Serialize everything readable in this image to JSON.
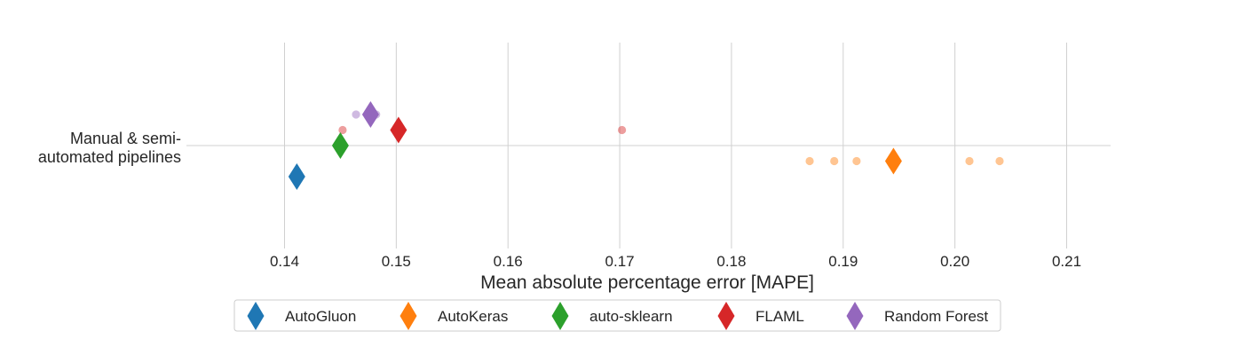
{
  "chart_data": {
    "type": "scatter",
    "title": "",
    "xlabel": "Mean absolute percentage error [MAPE]",
    "ylabel": "",
    "xlim": [
      0.13,
      0.2141
    ],
    "xticks": [
      0.14,
      0.15,
      0.16,
      0.17,
      0.18,
      0.19,
      0.2,
      0.21
    ],
    "xtick_labels": [
      "0.14",
      "0.15",
      "0.16",
      "0.17",
      "0.18",
      "0.19",
      "0.20",
      "0.21"
    ],
    "categories": [
      "Manual & semi-\nautomated pipelines"
    ],
    "category_lines": [
      "Manual & semi-",
      "automated pipelines"
    ],
    "grid": true,
    "legend_placement": "bottom-center",
    "series": [
      {
        "name": "AutoGluon",
        "color": "#1f77b4",
        "mean": 0.1411,
        "offset": 2,
        "points": []
      },
      {
        "name": "AutoKeras",
        "color": "#ff7f0e",
        "mean": 0.1945,
        "offset": 1,
        "points": [
          0.187,
          0.1892,
          0.1912,
          0.2013,
          0.204
        ]
      },
      {
        "name": "auto-sklearn",
        "color": "#2ca02c",
        "mean": 0.145,
        "offset": 0,
        "points": []
      },
      {
        "name": "FLAML",
        "color": "#d62728",
        "mean": 0.1502,
        "offset": -1,
        "points": [
          0.1452,
          0.1702
        ]
      },
      {
        "name": "Random Forest",
        "color": "#9467bd",
        "mean": 0.1477,
        "offset": -2,
        "points": [
          0.1464,
          0.1482
        ]
      }
    ]
  }
}
